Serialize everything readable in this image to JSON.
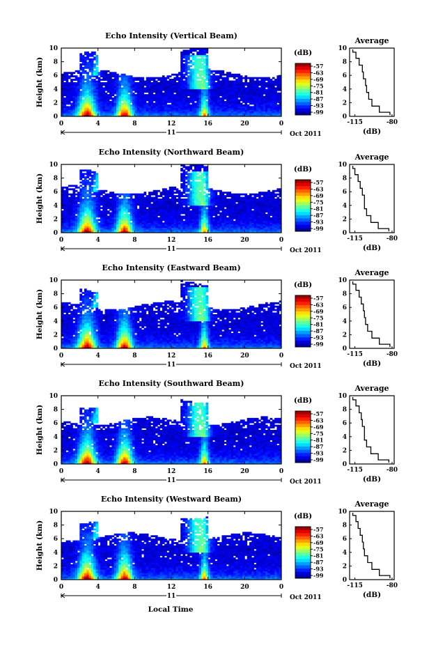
{
  "figure": {
    "bottom_label": "Local Time"
  },
  "chart_data": [
    {
      "type": "heatmap",
      "title": "Echo Intensity (Vertical Beam)",
      "ylabel": "Height (km)",
      "ylim": [
        0,
        10
      ],
      "yticks": [
        "0",
        "2",
        "4",
        "6",
        "8",
        "10"
      ],
      "xlim": [
        0,
        24
      ],
      "xticks": [
        "0",
        "4",
        "8",
        "12",
        "16",
        "20",
        "0"
      ],
      "date_day": "11",
      "date_label": "Oct 2011",
      "colorbar": {
        "unit": "(dB)",
        "ticks": [
          "-57",
          "-63",
          "-69",
          "-75",
          "-81",
          "-87",
          "-93",
          "-99"
        ]
      },
      "profile": {
        "title": "Average",
        "xlabel": "(dB)",
        "xticks": [
          "-115",
          "-80"
        ],
        "xlim": [
          -120,
          -78
        ],
        "yticks": [
          "0",
          "2",
          "4",
          "6",
          "8",
          "10"
        ],
        "ylim": [
          0,
          10
        ],
        "heights": [
          0.2,
          1,
          2,
          3,
          4,
          5,
          6,
          7,
          8,
          9,
          9.8
        ],
        "values": [
          -82,
          -92,
          -99,
          -102,
          -104,
          -105,
          -107,
          -108,
          -111,
          -114,
          -117
        ]
      }
    },
    {
      "type": "heatmap",
      "title": "Echo Intensity (Northward Beam)",
      "ylabel": "Height (km)",
      "ylim": [
        0,
        10
      ],
      "yticks": [
        "0",
        "2",
        "4",
        "6",
        "8",
        "10"
      ],
      "xlim": [
        0,
        24
      ],
      "xticks": [
        "0",
        "4",
        "8",
        "12",
        "16",
        "20",
        "0"
      ],
      "date_day": "11",
      "date_label": "Oct 2011",
      "colorbar": {
        "unit": "(dB)",
        "ticks": [
          "-57",
          "-63",
          "-69",
          "-75",
          "-81",
          "-87",
          "-93",
          "-99"
        ]
      },
      "profile": {
        "title": "Average",
        "xlabel": "(dB)",
        "xticks": [
          "-115",
          "-80"
        ],
        "xlim": [
          -120,
          -78
        ],
        "yticks": [
          "0",
          "2",
          "4",
          "6",
          "8",
          "10"
        ],
        "ylim": [
          0,
          10
        ],
        "heights": [
          0.2,
          1,
          2,
          3,
          4,
          5,
          6,
          7,
          8,
          9,
          9.8
        ],
        "values": [
          -83,
          -93,
          -100,
          -104,
          -106,
          -106,
          -108,
          -110,
          -112,
          -115,
          -117
        ]
      }
    },
    {
      "type": "heatmap",
      "title": "Echo Intensity (Eastward Beam)",
      "ylabel": "Height (km)",
      "ylim": [
        0,
        10
      ],
      "yticks": [
        "0",
        "2",
        "4",
        "6",
        "8",
        "10"
      ],
      "xlim": [
        0,
        24
      ],
      "xticks": [
        "0",
        "4",
        "8",
        "12",
        "16",
        "20",
        "0"
      ],
      "date_day": "11",
      "date_label": "Oct 2011",
      "colorbar": {
        "unit": "(dB)",
        "ticks": [
          "-57",
          "-63",
          "-69",
          "-75",
          "-81",
          "-87",
          "-93",
          "-99"
        ]
      },
      "profile": {
        "title": "Average",
        "xlabel": "(dB)",
        "xticks": [
          "-115",
          "-80"
        ],
        "xlim": [
          -120,
          -78
        ],
        "yticks": [
          "0",
          "2",
          "4",
          "6",
          "8",
          "10"
        ],
        "ylim": [
          0,
          10
        ],
        "heights": [
          0.2,
          1,
          2,
          3,
          4,
          5,
          6,
          7,
          8,
          9,
          9.8
        ],
        "values": [
          -82,
          -92,
          -99,
          -103,
          -105,
          -106,
          -107,
          -109,
          -111,
          -114,
          -117
        ]
      }
    },
    {
      "type": "heatmap",
      "title": "Echo Intensity (Southward Beam)",
      "ylabel": "Height (km)",
      "ylim": [
        0,
        10
      ],
      "yticks": [
        "0",
        "2",
        "4",
        "6",
        "8",
        "10"
      ],
      "xlim": [
        0,
        24
      ],
      "xticks": [
        "0",
        "4",
        "8",
        "12",
        "16",
        "20",
        "0"
      ],
      "date_day": "11",
      "date_label": "Oct 2011",
      "colorbar": {
        "unit": "(dB)",
        "ticks": [
          "-57",
          "-63",
          "-69",
          "-75",
          "-81",
          "-87",
          "-93",
          "-99"
        ]
      },
      "profile": {
        "title": "Average",
        "xlabel": "(dB)",
        "xticks": [
          "-115",
          "-80"
        ],
        "xlim": [
          -120,
          -78
        ],
        "yticks": [
          "0",
          "2",
          "4",
          "6",
          "8",
          "10"
        ],
        "ylim": [
          0,
          10
        ],
        "heights": [
          0.2,
          1,
          2,
          3,
          4,
          5,
          6,
          7,
          8,
          9,
          9.8
        ],
        "values": [
          -83,
          -93,
          -100,
          -104,
          -106,
          -106,
          -108,
          -109,
          -111,
          -114,
          -117
        ]
      }
    },
    {
      "type": "heatmap",
      "title": "Echo Intensity (Westward Beam)",
      "ylabel": "Height (km)",
      "ylim": [
        0,
        10
      ],
      "yticks": [
        "0",
        "2",
        "4",
        "6",
        "8",
        "10"
      ],
      "xlim": [
        0,
        24
      ],
      "xticks": [
        "0",
        "4",
        "8",
        "12",
        "16",
        "20",
        "0"
      ],
      "date_day": "11",
      "date_label": "Oct 2011",
      "colorbar": {
        "unit": "(dB)",
        "ticks": [
          "-57",
          "-63",
          "-69",
          "-75",
          "-81",
          "-87",
          "-93",
          "-99"
        ]
      },
      "profile": {
        "title": "Average",
        "xlabel": "(dB)",
        "xticks": [
          "-115",
          "-80"
        ],
        "xlim": [
          -120,
          -78
        ],
        "yticks": [
          "0",
          "2",
          "4",
          "6",
          "8",
          "10"
        ],
        "ylim": [
          0,
          10
        ],
        "heights": [
          0.2,
          1,
          2,
          3,
          4,
          5,
          6,
          7,
          8,
          9,
          9.8
        ],
        "values": [
          -82,
          -92,
          -99,
          -103,
          -106,
          -107,
          -108,
          -110,
          -112,
          -114,
          -117
        ]
      }
    }
  ]
}
